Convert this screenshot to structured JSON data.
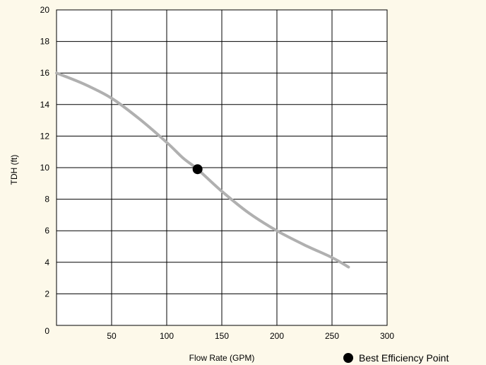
{
  "colors": {
    "background": "#fdf9ea",
    "plot_background": "#ffffff",
    "grid": "#000000",
    "curve": "#b0b0b0",
    "point": "#000000"
  },
  "chart_data": {
    "type": "line",
    "title": "",
    "xlabel": "Flow Rate (GPM)",
    "ylabel": "TDH (ft)",
    "xlim": [
      0,
      300
    ],
    "ylim": [
      0,
      20
    ],
    "x_ticks": [
      0,
      50,
      100,
      150,
      200,
      250,
      300
    ],
    "y_ticks": [
      0,
      2,
      4,
      6,
      8,
      10,
      12,
      14,
      16,
      18,
      20
    ],
    "grid": true,
    "series": [
      {
        "x": [
          0,
          25,
          50,
          75,
          100,
          115,
          128,
          150,
          175,
          200,
          225,
          250,
          265
        ],
        "y": [
          16,
          15.3,
          14.4,
          13.1,
          11.6,
          10.6,
          9.9,
          8.5,
          7.1,
          6.0,
          5.1,
          4.3,
          3.7
        ]
      }
    ],
    "points": [
      {
        "name": "Best Efficiency Point",
        "x": 128,
        "y": 9.9
      }
    ],
    "legend": {
      "placement": "bottom-right",
      "label": "Best Efficiency Point"
    }
  }
}
